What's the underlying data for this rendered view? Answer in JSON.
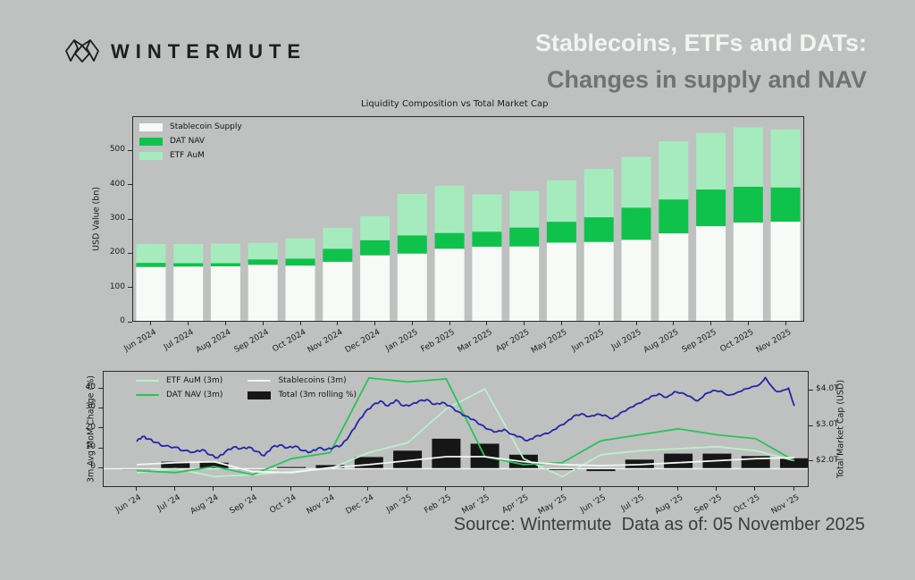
{
  "brand": {
    "wordmark": "WINTERMUTE"
  },
  "header": {
    "title_line1": "Stablecoins, ETFs and DATs:",
    "title_line2": "Changes in supply and NAV"
  },
  "source": {
    "text": "Source: Wintermute  Data as of: 05 November 2025"
  },
  "colors": {
    "background": "#bec1bf",
    "title_white": "#f2f4f1",
    "title_gray": "#6f7472",
    "market_cap_blue": "#2525a6",
    "frame": "#2b2b2b"
  },
  "chart_data": [
    {
      "type": "bar",
      "stacked": true,
      "title": "Liquidity Composition vs Total Market Cap",
      "ylabel": "USD Value (bn)",
      "ylim": [
        0,
        600
      ],
      "yticks": [
        0,
        100,
        200,
        300,
        400,
        500
      ],
      "grid": false,
      "legend_position": "upper left",
      "categories": [
        "Jun 2024",
        "Jul 2024",
        "Aug 2024",
        "Sep 2024",
        "Oct 2024",
        "Nov 2024",
        "Dec 2024",
        "Jan 2025",
        "Feb 2025",
        "Mar 2025",
        "Apr 2025",
        "May 2025",
        "Jun 2025",
        "Jul 2025",
        "Aug 2025",
        "Sep 2025",
        "Oct 2025",
        "Nov 2025"
      ],
      "series": [
        {
          "name": "Stablecoin Supply",
          "color": "#f8faf7",
          "values": [
            160,
            161,
            162,
            166,
            164,
            175,
            194,
            199,
            213,
            219,
            220,
            231,
            233,
            239,
            258,
            279,
            290,
            292
          ]
        },
        {
          "name": "DAT NAV",
          "color": "#0fc24b",
          "values": [
            12,
            10,
            9,
            16,
            20,
            38,
            44,
            53,
            46,
            44,
            55,
            61,
            72,
            94,
            99,
            107,
            104,
            100
          ]
        },
        {
          "name": "ETF AuM",
          "color": "#a6ebbd",
          "values": [
            55,
            56,
            57,
            48,
            59,
            61,
            70,
            121,
            138,
            109,
            107,
            121,
            141,
            148,
            170,
            165,
            173,
            169
          ]
        }
      ]
    },
    {
      "type": "line",
      "ylabel_left": "3m Avg MoM Change (%)",
      "ylabel_right": "Total Market Cap (USD)",
      "ylim_left": [
        -9.7,
        48.6
      ],
      "yticks_left": [
        0,
        10,
        20,
        30,
        40
      ],
      "ylim_right": [
        1.27,
        4.54
      ],
      "yticks_right": [
        {
          "value": 2.0,
          "label": "$2.0T"
        },
        {
          "value": 3.0,
          "label": "$3.0T"
        },
        {
          "value": 4.0,
          "label": "$4.0T"
        }
      ],
      "grid": false,
      "legend_position": "upper left",
      "categories": [
        "Jun '24",
        "Jul '24",
        "Aug '24",
        "Sep '24",
        "Oct '24",
        "Nov '24",
        "Dec '24",
        "Jan '25",
        "Feb '25",
        "Mar '25",
        "Apr '25",
        "May '25",
        "Jun '25",
        "Jul '25",
        "Aug '25",
        "Sep '25",
        "Oct '25",
        "Nov '25"
      ],
      "bar_series": {
        "name": "Total (3m rolling %)",
        "color": "#161616",
        "values": [
          0,
          3.5,
          3,
          0,
          0.8,
          1.8,
          5.8,
          9,
          15,
          12.5,
          7,
          -0.7,
          -1.2,
          4.5,
          7.5,
          7.5,
          6.3,
          5.2
        ]
      },
      "line_series": [
        {
          "name": "ETF AuM (3m)",
          "color": "#b9f0cb",
          "values": [
            -2,
            0,
            -4,
            -3,
            -1.5,
            0,
            8,
            13,
            30,
            40,
            5,
            -4,
            7,
            9,
            10,
            11,
            9,
            4
          ]
        },
        {
          "name": "DAT NAV (3m)",
          "color": "#28c45b",
          "values": [
            -1,
            -2,
            1,
            -3,
            5,
            8,
            45.5,
            43.5,
            45,
            6,
            2,
            3,
            14,
            17,
            20,
            17,
            15,
            4
          ]
        },
        {
          "name": "Stablecoins (3m)",
          "color": "#f4f6f3",
          "values": [
            2,
            3,
            3.5,
            -1.5,
            -2,
            0.5,
            2,
            4,
            6,
            6,
            3.5,
            2,
            1.5,
            2,
            3,
            4,
            5,
            5.5
          ]
        }
      ],
      "zero_line_color": "#f4f6f3",
      "market_cap_line": {
        "name": "Total Market Cap",
        "color": "#2525a6",
        "axis": "right",
        "points": [
          [
            0,
            2.58
          ],
          [
            0.15,
            2.72
          ],
          [
            0.3,
            2.65
          ],
          [
            0.5,
            2.55
          ],
          [
            0.7,
            2.45
          ],
          [
            1,
            2.42
          ],
          [
            1.2,
            2.32
          ],
          [
            1.5,
            2.28
          ],
          [
            1.7,
            2.35
          ],
          [
            1.9,
            2.2
          ],
          [
            2.1,
            2.12
          ],
          [
            2.3,
            2.3
          ],
          [
            2.5,
            2.42
          ],
          [
            2.7,
            2.38
          ],
          [
            2.9,
            2.42
          ],
          [
            3.1,
            2.3
          ],
          [
            3.3,
            2.18
          ],
          [
            3.5,
            2.42
          ],
          [
            3.7,
            2.48
          ],
          [
            3.9,
            2.4
          ],
          [
            4.1,
            2.45
          ],
          [
            4.3,
            2.32
          ],
          [
            4.5,
            2.28
          ],
          [
            4.7,
            2.4
          ],
          [
            4.9,
            2.35
          ],
          [
            5.1,
            2.42
          ],
          [
            5.3,
            2.48
          ],
          [
            5.5,
            2.75
          ],
          [
            5.7,
            3.1
          ],
          [
            5.9,
            3.4
          ],
          [
            6.1,
            3.6
          ],
          [
            6.3,
            3.72
          ],
          [
            6.5,
            3.58
          ],
          [
            6.7,
            3.75
          ],
          [
            6.9,
            3.58
          ],
          [
            7.1,
            3.62
          ],
          [
            7.3,
            3.72
          ],
          [
            7.5,
            3.76
          ],
          [
            7.7,
            3.62
          ],
          [
            7.9,
            3.68
          ],
          [
            8.1,
            3.58
          ],
          [
            8.3,
            3.42
          ],
          [
            8.5,
            3.3
          ],
          [
            8.7,
            3.2
          ],
          [
            8.9,
            3.05
          ],
          [
            9.1,
            2.92
          ],
          [
            9.3,
            2.85
          ],
          [
            9.5,
            2.92
          ],
          [
            9.7,
            2.78
          ],
          [
            9.9,
            2.72
          ],
          [
            10.1,
            2.6
          ],
          [
            10.3,
            2.72
          ],
          [
            10.5,
            2.78
          ],
          [
            10.7,
            2.85
          ],
          [
            10.9,
            3.0
          ],
          [
            11.1,
            3.12
          ],
          [
            11.3,
            3.3
          ],
          [
            11.5,
            3.36
          ],
          [
            11.7,
            3.28
          ],
          [
            11.9,
            3.35
          ],
          [
            12.1,
            3.32
          ],
          [
            12.3,
            3.22
          ],
          [
            12.5,
            3.38
          ],
          [
            12.7,
            3.5
          ],
          [
            12.9,
            3.62
          ],
          [
            13.1,
            3.72
          ],
          [
            13.3,
            3.85
          ],
          [
            13.5,
            3.92
          ],
          [
            13.7,
            3.82
          ],
          [
            13.9,
            3.98
          ],
          [
            14.1,
            3.95
          ],
          [
            14.3,
            3.85
          ],
          [
            14.5,
            3.72
          ],
          [
            14.7,
            3.92
          ],
          [
            14.9,
            4.02
          ],
          [
            15.1,
            4.0
          ],
          [
            15.3,
            3.88
          ],
          [
            15.5,
            3.95
          ],
          [
            15.7,
            4.05
          ],
          [
            15.9,
            4.12
          ],
          [
            16.1,
            4.18
          ],
          [
            16.25,
            4.38
          ],
          [
            16.4,
            4.15
          ],
          [
            16.55,
            3.98
          ],
          [
            16.7,
            4.02
          ],
          [
            16.85,
            4.08
          ],
          [
            17,
            3.58
          ]
        ]
      }
    }
  ]
}
